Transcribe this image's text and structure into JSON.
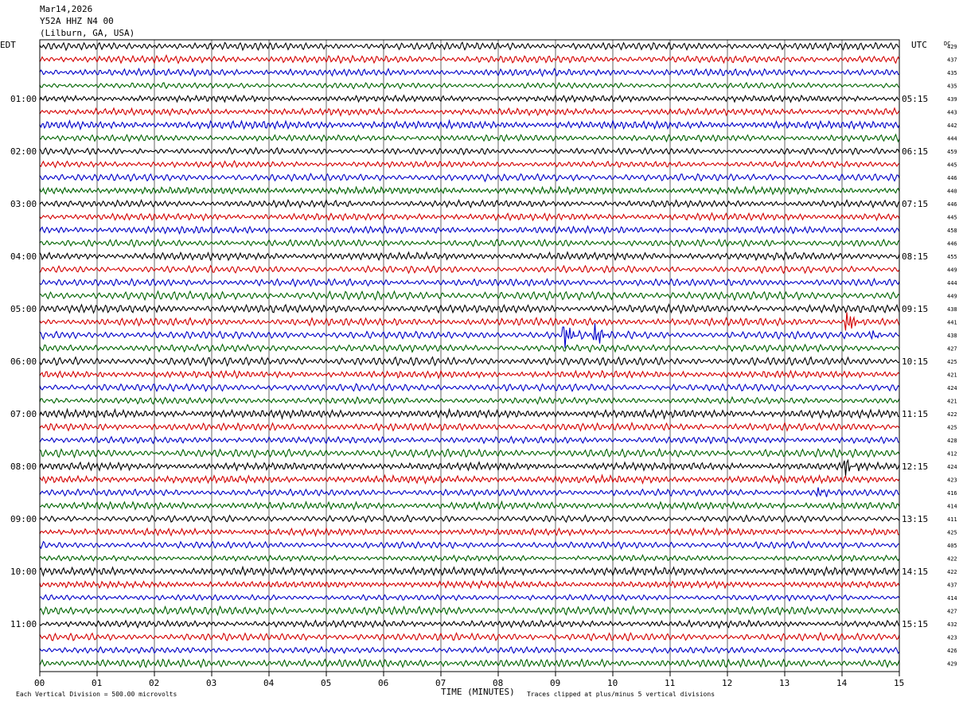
{
  "header": {
    "date": "Mar14,2026",
    "station": "Y52A HHZ N4 00",
    "location": "(Lilburn, GA, USA)"
  },
  "labels": {
    "left_zone": "EDT",
    "right_zone": "UTC",
    "dc": "DC"
  },
  "footer": {
    "division": "Each Vertical Division =  500.00 microvolts",
    "xlabel": "TIME (MINUTES)",
    "clip_note": "Traces clipped at plus/minus 5 vertical divisions"
  },
  "chart_data": {
    "type": "line",
    "title": "",
    "xlabel": "TIME (MINUTES)",
    "ylabel": "",
    "xlim": [
      0,
      15
    ],
    "x_ticks": [
      "00",
      "01",
      "02",
      "03",
      "04",
      "05",
      "06",
      "07",
      "08",
      "09",
      "10",
      "11",
      "12",
      "13",
      "14",
      "15"
    ],
    "grid": "vertical lines each minute",
    "trace_colors": [
      "#000000",
      "#d40000",
      "#0000c8",
      "#006400"
    ],
    "left_hour_labels": [
      "01:00",
      "02:00",
      "03:00",
      "04:00",
      "05:00",
      "06:00",
      "07:00",
      "08:00",
      "09:00",
      "10:00",
      "11:00"
    ],
    "right_hour_labels": [
      "05:15",
      "06:15",
      "07:15",
      "08:15",
      "09:15",
      "10:15",
      "11:15",
      "12:15",
      "13:15",
      "14:15",
      "15:15"
    ],
    "dc_offsets": [
      429,
      437,
      435,
      435,
      439,
      443,
      442,
      444,
      459,
      445,
      446,
      440,
      446,
      445,
      458,
      446,
      455,
      449,
      444,
      449,
      438,
      441,
      438,
      427,
      425,
      421,
      424,
      421,
      422,
      425,
      428,
      412,
      424,
      423,
      416,
      414,
      411,
      425,
      405,
      422,
      422,
      437,
      414,
      427,
      432,
      423,
      426,
      429
    ],
    "events": [
      {
        "trace": 21,
        "minute": 14.1,
        "amplitude": 3.5
      },
      {
        "trace": 22,
        "minute": 9.15,
        "amplitude": 4.5
      },
      {
        "trace": 22,
        "minute": 9.7,
        "amplitude": 3.5
      },
      {
        "trace": 22,
        "minute": 14.5,
        "amplitude": 1.5
      },
      {
        "trace": 32,
        "minute": 14.05,
        "amplitude": 2.5
      },
      {
        "trace": 34,
        "minute": 13.6,
        "amplitude": 1.5
      }
    ]
  }
}
